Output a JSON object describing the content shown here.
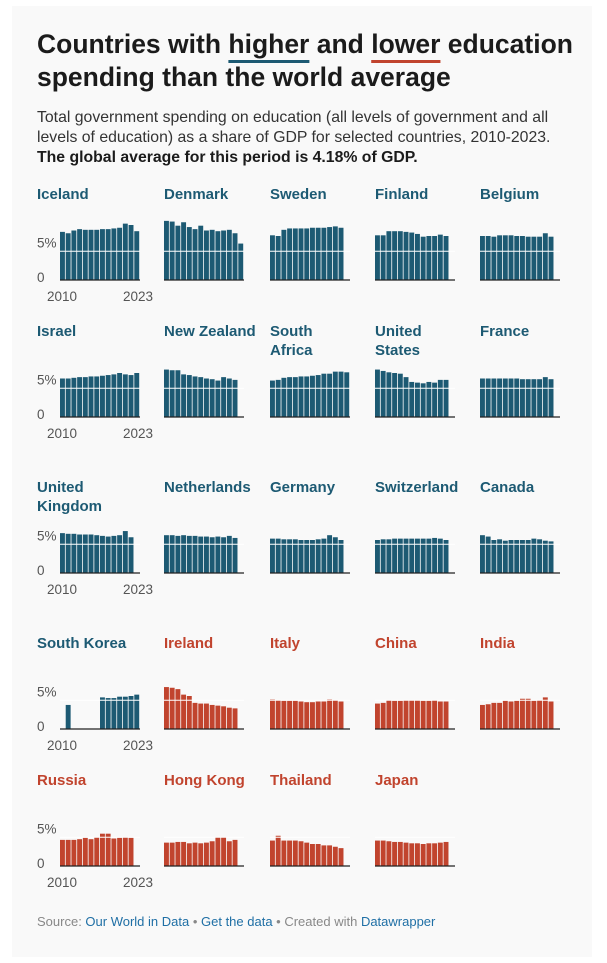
{
  "title": {
    "part1": "Countries with ",
    "higher": "higher",
    "part2": " and ",
    "lower": "lower",
    "part3": " education spending than the world average"
  },
  "subtitle": {
    "text": "Total government spending on education (all levels of government and all levels of education) as a share of GDP for selected countries, 2010-2023. ",
    "bold": "The global average for this period is 4.18% of GDP."
  },
  "footer": {
    "source_label": "Source: ",
    "source_link": "Our World in Data",
    "sep1": " • ",
    "get_data": "Get the data",
    "sep2": " • Created with ",
    "datawrapper": "Datawrapper"
  },
  "colors": {
    "higher": "#1d5a73",
    "lower": "#c1442e",
    "axis": "#222222",
    "reference_line": "#ffffff"
  },
  "chart_data": {
    "type": "bar",
    "layout": "small-multiples",
    "reference_value": 4.18,
    "ylim": [
      0,
      8
    ],
    "y_ticks": [
      {
        "value": 5,
        "label": "5%"
      },
      {
        "value": 0,
        "label": "0"
      }
    ],
    "x_ticks": [
      "2010",
      "2023"
    ],
    "years": [
      2010,
      2011,
      2012,
      2013,
      2014,
      2015,
      2016,
      2017,
      2018,
      2019,
      2020,
      2021,
      2022,
      2023
    ],
    "countries": [
      {
        "name": "Iceland",
        "group": "higher",
        "values": [
          7.0,
          6.8,
          7.2,
          7.4,
          7.3,
          7.3,
          7.3,
          7.4,
          7.4,
          7.5,
          7.6,
          8.2,
          8.0,
          7.1
        ]
      },
      {
        "name": "Denmark",
        "group": "higher",
        "values": [
          8.6,
          8.5,
          7.9,
          8.4,
          7.7,
          7.4,
          7.9,
          7.2,
          7.3,
          7.1,
          7.2,
          7.3,
          6.8,
          5.3
        ]
      },
      {
        "name": "Sweden",
        "group": "higher",
        "values": [
          6.5,
          6.4,
          7.3,
          7.5,
          7.5,
          7.5,
          7.5,
          7.6,
          7.6,
          7.6,
          7.7,
          7.8,
          7.6,
          null
        ]
      },
      {
        "name": "Finland",
        "group": "higher",
        "values": [
          6.5,
          6.5,
          7.1,
          7.1,
          7.1,
          7.0,
          6.9,
          6.7,
          6.3,
          6.4,
          6.4,
          6.6,
          6.4,
          null
        ]
      },
      {
        "name": "Belgium",
        "group": "higher",
        "values": [
          6.4,
          6.4,
          6.3,
          6.5,
          6.5,
          6.5,
          6.4,
          6.4,
          6.3,
          6.3,
          6.3,
          6.8,
          6.3,
          null
        ]
      },
      {
        "name": "Israel",
        "group": "higher",
        "values": [
          5.6,
          5.6,
          5.7,
          5.8,
          5.8,
          5.9,
          5.9,
          6.0,
          6.1,
          6.2,
          6.4,
          6.2,
          6.1,
          6.4
        ]
      },
      {
        "name": "New Zealand",
        "group": "higher",
        "values": [
          6.9,
          6.8,
          6.8,
          6.2,
          6.1,
          5.9,
          5.8,
          5.6,
          5.5,
          5.3,
          5.8,
          5.6,
          5.4,
          null
        ]
      },
      {
        "name": "South Africa",
        "group": "higher",
        "values": [
          5.3,
          5.4,
          5.7,
          5.8,
          5.8,
          5.9,
          5.9,
          6.0,
          6.1,
          6.3,
          6.3,
          6.6,
          6.6,
          6.5
        ]
      },
      {
        "name": "United States",
        "group": "higher",
        "values": [
          6.9,
          6.7,
          6.5,
          6.4,
          6.3,
          5.8,
          5.1,
          5.0,
          4.9,
          5.1,
          5.0,
          5.4,
          5.4,
          null
        ]
      },
      {
        "name": "France",
        "group": "higher",
        "values": [
          5.6,
          5.6,
          5.6,
          5.6,
          5.6,
          5.6,
          5.6,
          5.5,
          5.5,
          5.5,
          5.5,
          5.8,
          5.5,
          null
        ]
      },
      {
        "name": "United Kingdom",
        "group": "higher",
        "values": [
          5.8,
          5.7,
          5.7,
          5.6,
          5.6,
          5.6,
          5.5,
          5.4,
          5.3,
          5.4,
          5.5,
          6.1,
          5.2,
          null
        ]
      },
      {
        "name": "Netherlands",
        "group": "higher",
        "values": [
          5.5,
          5.5,
          5.4,
          5.5,
          5.4,
          5.4,
          5.3,
          5.3,
          5.2,
          5.3,
          5.2,
          5.4,
          5.1,
          null
        ]
      },
      {
        "name": "Germany",
        "group": "higher",
        "values": [
          5.0,
          5.0,
          4.9,
          4.9,
          4.9,
          4.8,
          4.8,
          4.8,
          4.9,
          5.0,
          5.5,
          5.2,
          4.8,
          null
        ]
      },
      {
        "name": "Switzerland",
        "group": "higher",
        "values": [
          4.8,
          4.9,
          4.9,
          5.0,
          5.0,
          5.0,
          5.0,
          5.0,
          5.0,
          5.0,
          5.1,
          5.0,
          4.8,
          null
        ]
      },
      {
        "name": "Canada",
        "group": "higher",
        "values": [
          5.5,
          5.3,
          4.8,
          4.9,
          4.7,
          4.8,
          4.8,
          4.8,
          4.8,
          5.0,
          4.9,
          4.7,
          4.6,
          null
        ]
      },
      {
        "name": "South Korea",
        "group": "higher",
        "values": [
          null,
          3.5,
          null,
          null,
          null,
          null,
          null,
          4.6,
          4.5,
          4.5,
          4.7,
          4.7,
          4.8,
          5.0
        ]
      },
      {
        "name": "Ireland",
        "group": "lower",
        "values": [
          6.1,
          6.0,
          5.8,
          5.0,
          4.8,
          3.8,
          3.7,
          3.7,
          3.5,
          3.4,
          3.3,
          3.1,
          3.0,
          null
        ]
      },
      {
        "name": "Italy",
        "group": "lower",
        "values": [
          4.3,
          4.2,
          4.1,
          4.1,
          4.1,
          4.0,
          3.9,
          3.9,
          4.0,
          4.0,
          4.3,
          4.2,
          4.0,
          null
        ]
      },
      {
        "name": "China",
        "group": "lower",
        "values": [
          3.7,
          3.8,
          4.2,
          4.1,
          4.1,
          4.2,
          4.2,
          4.2,
          4.1,
          4.1,
          4.2,
          4.0,
          4.0,
          null
        ]
      },
      {
        "name": "India",
        "group": "lower",
        "values": [
          3.5,
          3.6,
          3.8,
          3.8,
          4.1,
          4.0,
          4.1,
          4.4,
          4.4,
          4.1,
          4.2,
          4.6,
          4.0,
          null
        ]
      },
      {
        "name": "Russia",
        "group": "lower",
        "values": [
          3.8,
          3.8,
          3.8,
          3.9,
          4.1,
          3.9,
          4.2,
          4.7,
          4.7,
          4.0,
          4.1,
          4.2,
          4.1,
          null
        ]
      },
      {
        "name": "Hong Kong",
        "group": "lower",
        "values": [
          3.4,
          3.4,
          3.5,
          3.5,
          3.3,
          3.4,
          3.3,
          3.4,
          3.6,
          4.2,
          4.2,
          3.6,
          3.8,
          null
        ]
      },
      {
        "name": "Thailand",
        "group": "lower",
        "values": [
          3.7,
          4.4,
          3.7,
          3.7,
          3.7,
          3.6,
          3.4,
          3.2,
          3.2,
          3.0,
          3.0,
          2.8,
          2.6,
          null
        ]
      },
      {
        "name": "Japan",
        "group": "lower",
        "values": [
          3.7,
          3.7,
          3.6,
          3.5,
          3.5,
          3.4,
          3.3,
          3.3,
          3.2,
          3.3,
          3.3,
          3.4,
          3.5,
          null
        ]
      }
    ]
  }
}
